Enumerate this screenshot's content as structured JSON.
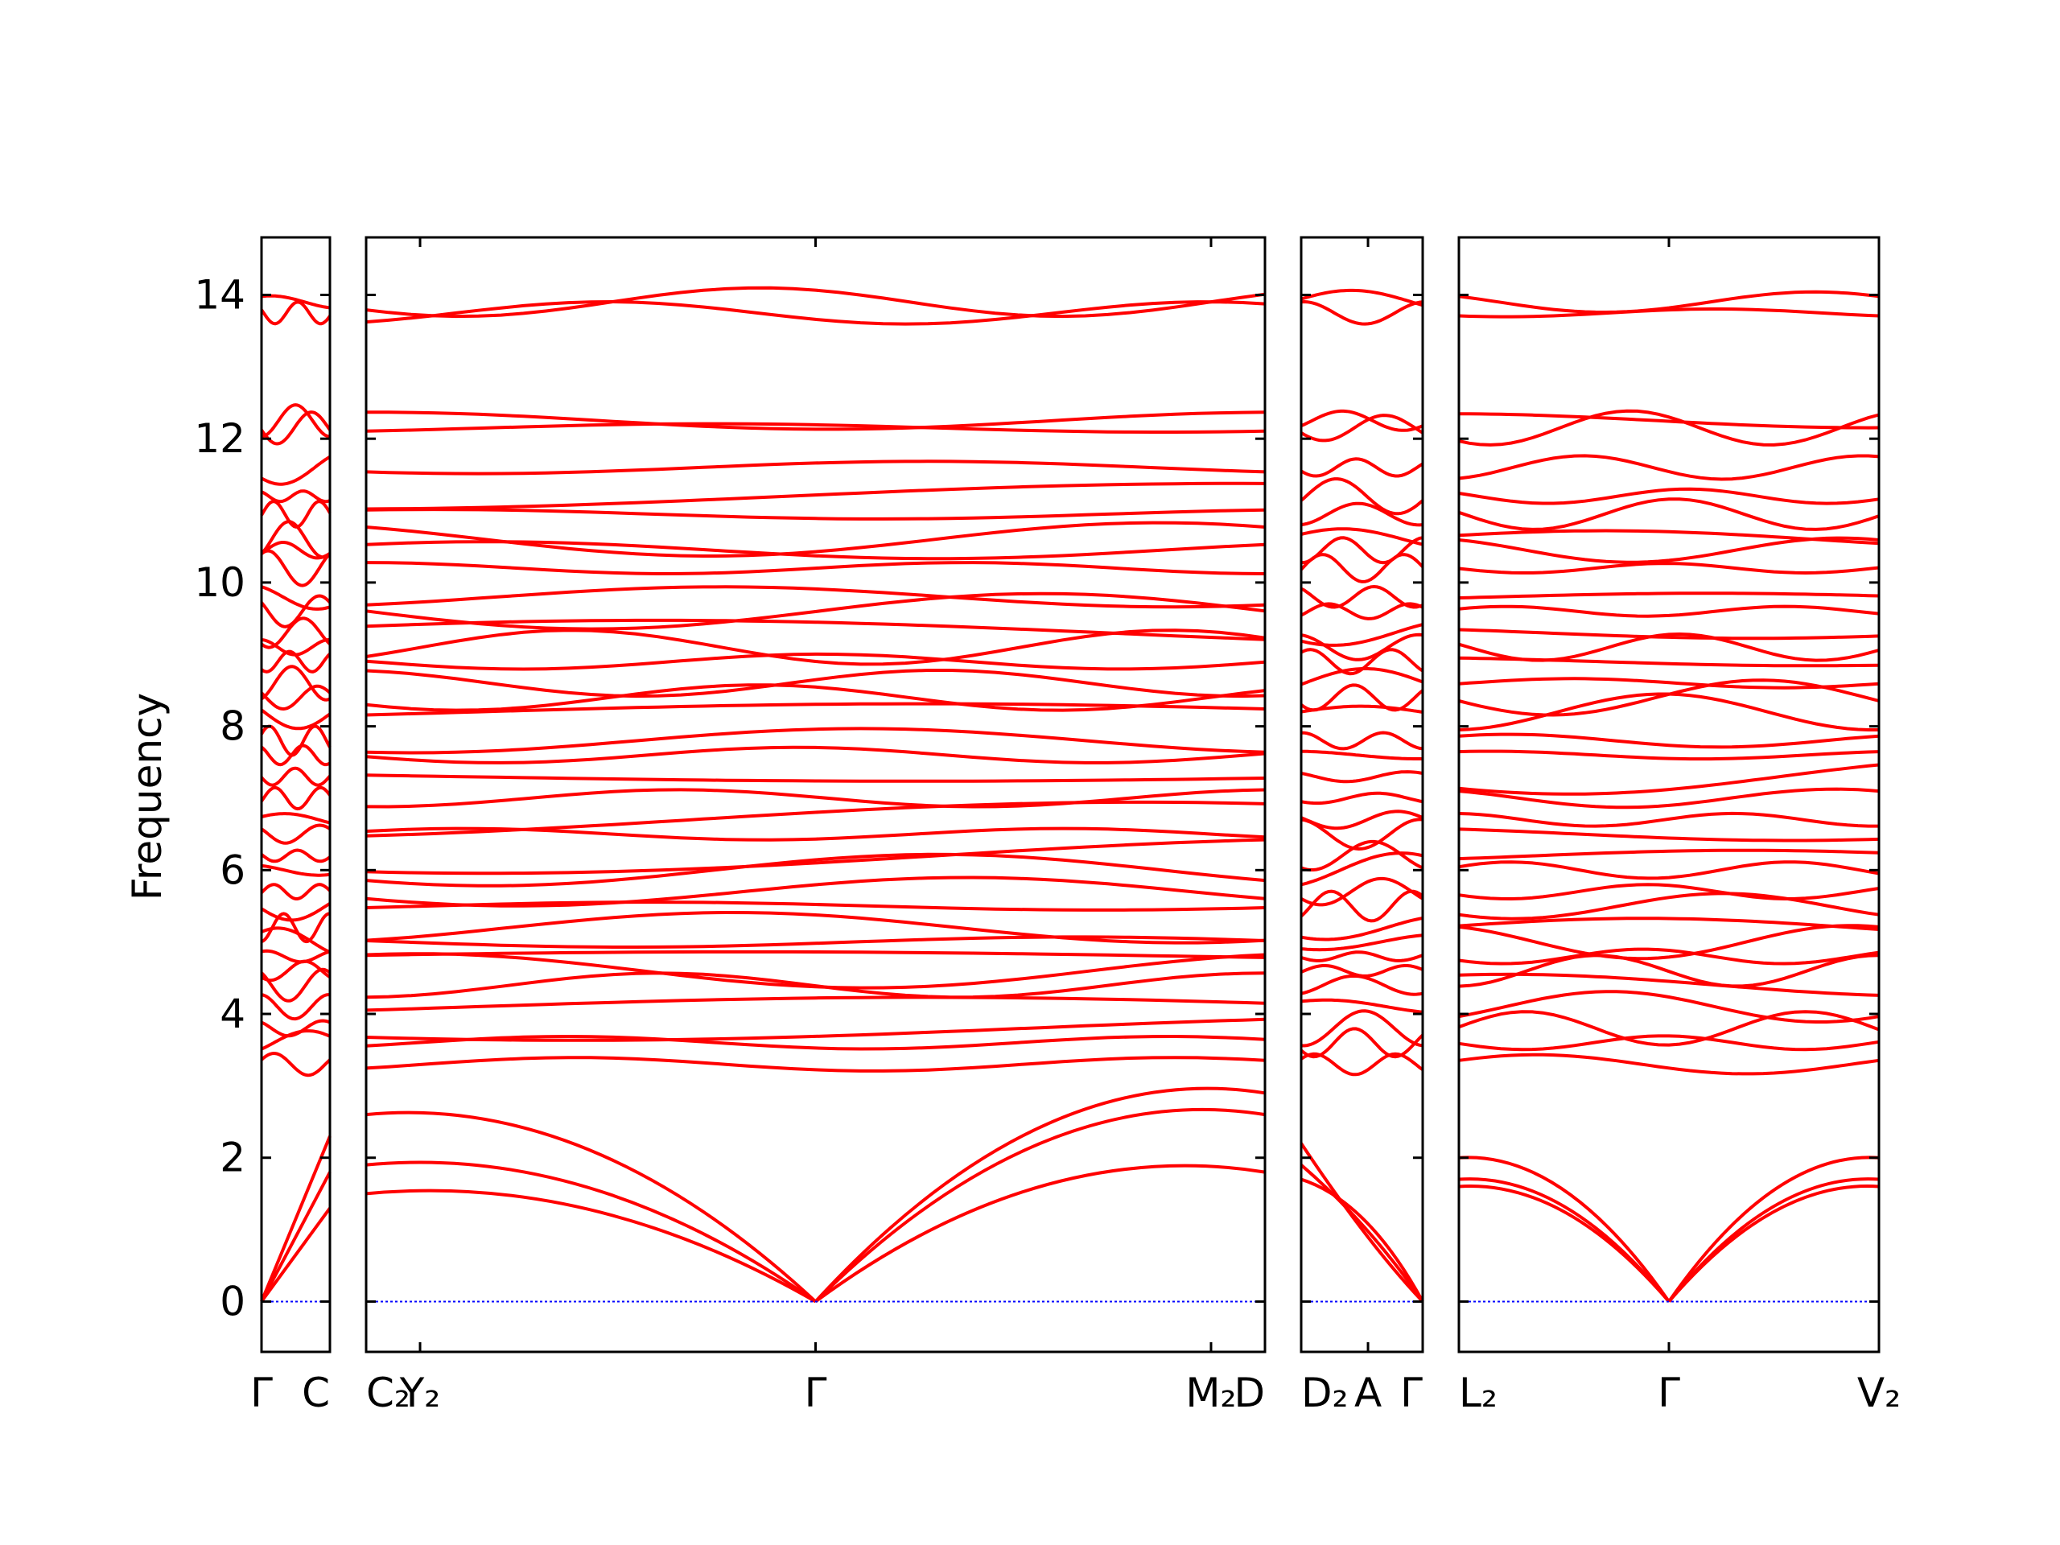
{
  "chart_data": {
    "type": "line",
    "title": "",
    "ylabel": "Frequency",
    "ylim": [
      -0.7,
      14.8
    ],
    "yticks": [
      0,
      2,
      4,
      6,
      8,
      10,
      12,
      14
    ],
    "band_color": "#ff0000",
    "zero_line_color": "#0000ff",
    "panels": [
      {
        "path": [
          "Γ",
          "C"
        ],
        "ticks": [
          {
            "label": "Γ",
            "pos": 0
          },
          {
            "label": "C",
            "pos": 1
          }
        ]
      },
      {
        "path": [
          "C₂",
          "Y₂",
          "Γ",
          "M₂",
          "D"
        ],
        "ticks": [
          {
            "label": "C₂",
            "pos": 0
          },
          {
            "label": "Y₂",
            "pos": 0.06
          },
          {
            "label": "Γ",
            "pos": 0.5
          },
          {
            "label": "M₂",
            "pos": 0.94
          },
          {
            "label": "D",
            "pos": 1
          }
        ]
      },
      {
        "path": [
          "D₂",
          "A",
          "Γ"
        ],
        "ticks": [
          {
            "label": "D₂",
            "pos": 0
          },
          {
            "label": "A",
            "pos": 0.55
          },
          {
            "label": "Γ",
            "pos": 1
          }
        ]
      },
      {
        "path": [
          "L₂",
          "Γ",
          "V₂"
        ],
        "ticks": [
          {
            "label": "L₂",
            "pos": 0
          },
          {
            "label": "Γ",
            "pos": 0.5
          },
          {
            "label": "V₂",
            "pos": 1
          }
        ]
      }
    ],
    "flat_band_frequencies": [
      13.9,
      13.75,
      12.25,
      12.15,
      11.6,
      11.2,
      10.95,
      10.6,
      10.45,
      10.2,
      9.8,
      9.6,
      9.3,
      9.1,
      8.9,
      8.6,
      8.4,
      8.2,
      7.8,
      7.6,
      7.3,
      7.0,
      6.7,
      6.5,
      6.2,
      6.0,
      5.7,
      5.5,
      5.2,
      5.0,
      4.8,
      4.6,
      4.4,
      4.1,
      3.8,
      3.6,
      3.3
    ],
    "acoustic_branches": {
      "gamma_value": 0,
      "panel2_end_values": [
        2.6,
        2.9,
        1.8
      ],
      "panel3_end_values": [
        2.4,
        2.1,
        1.9
      ],
      "panel4_end_values": [
        2.0,
        1.7,
        1.6
      ]
    }
  }
}
